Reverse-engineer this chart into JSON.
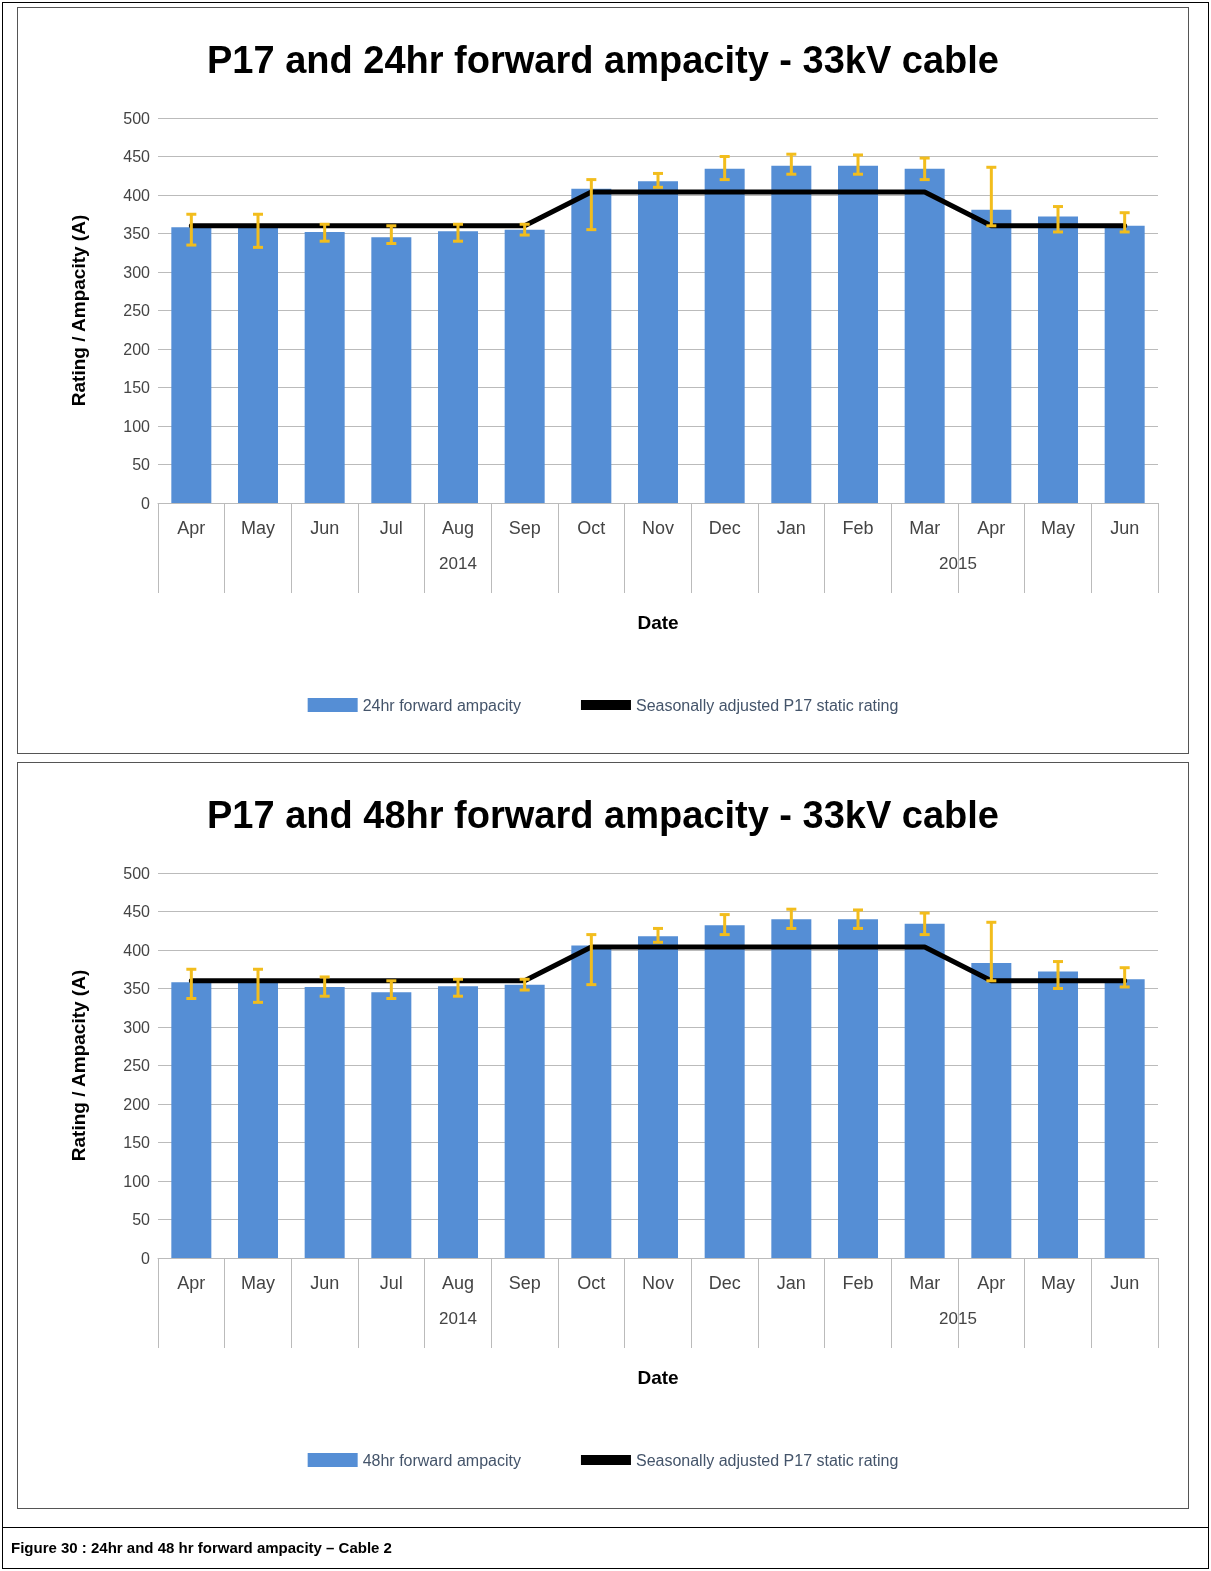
{
  "chart_data": [
    {
      "type": "bar",
      "title": "P17 and 24hr forward ampacity - 33kV cable",
      "xlabel": "Date",
      "ylabel": "Rating / Ampacity (A)",
      "categories": [
        "Apr",
        "May",
        "Jun",
        "Jul",
        "Aug",
        "Sep",
        "Oct",
        "Nov",
        "Dec",
        "Jan",
        "Feb",
        "Mar",
        "Apr",
        "May",
        "Jun"
      ],
      "series": [
        {
          "name": "24hr forward ampacity",
          "color": "#558ed5",
          "values": [
            358,
            357,
            352,
            345,
            353,
            355,
            408,
            418,
            434,
            438,
            438,
            434,
            381,
            372,
            360
          ],
          "errors": [
            [
              335,
              375
            ],
            [
              332,
              375
            ],
            [
              340,
              362
            ],
            [
              337,
              360
            ],
            [
              340,
              362
            ],
            [
              348,
              362
            ],
            [
              355,
              420
            ],
            [
              410,
              428
            ],
            [
              420,
              450
            ],
            [
              427,
              453
            ],
            [
              427,
              452
            ],
            [
              420,
              448
            ],
            [
              360,
              436
            ],
            [
              352,
              385
            ],
            [
              352,
              377
            ]
          ]
        },
        {
          "name": "Seasonally adjusted P17 static rating",
          "type": "line",
          "color": "#000000",
          "values": [
            360,
            360,
            360,
            360,
            360,
            360,
            404,
            404,
            404,
            404,
            404,
            404,
            360,
            360,
            360
          ]
        }
      ],
      "ylim": [
        0,
        500
      ],
      "yticks": [
        0,
        50,
        100,
        150,
        200,
        250,
        300,
        350,
        400,
        450,
        500
      ],
      "grid": "y",
      "legend": "bottom",
      "marker": "none",
      "line_style": "solid",
      "annotations": [
        "2014",
        "2015"
      ]
    },
    {
      "type": "bar",
      "title": "P17 and 48hr forward ampacity - 33kV cable",
      "xlabel": "Date",
      "ylabel": "Rating / Ampacity (A)",
      "categories": [
        "Apr",
        "May",
        "Jun",
        "Jul",
        "Aug",
        "Sep",
        "Oct",
        "Nov",
        "Dec",
        "Jan",
        "Feb",
        "Mar",
        "Apr",
        "May",
        "Jun"
      ],
      "series": [
        {
          "name": "48hr forward ampacity",
          "color": "#558ed5",
          "values": [
            358,
            357,
            352,
            345,
            353,
            355,
            406,
            418,
            432,
            440,
            440,
            434,
            383,
            372,
            362
          ],
          "errors": [
            [
              337,
              375
            ],
            [
              332,
              375
            ],
            [
              340,
              365
            ],
            [
              337,
              360
            ],
            [
              340,
              362
            ],
            [
              348,
              362
            ],
            [
              355,
              420
            ],
            [
              410,
              428
            ],
            [
              420,
              446
            ],
            [
              428,
              453
            ],
            [
              428,
              452
            ],
            [
              420,
              448
            ],
            [
              360,
              436
            ],
            [
              350,
              385
            ],
            [
              352,
              377
            ]
          ]
        },
        {
          "name": "Seasonally adjusted P17 static rating",
          "type": "line",
          "color": "#000000",
          "values": [
            360,
            360,
            360,
            360,
            360,
            360,
            404,
            404,
            404,
            404,
            404,
            404,
            360,
            360,
            360
          ]
        }
      ],
      "ylim": [
        0,
        500
      ],
      "yticks": [
        0,
        50,
        100,
        150,
        200,
        250,
        300,
        350,
        400,
        450,
        500
      ],
      "grid": "y",
      "legend": "bottom",
      "marker": "none",
      "line_style": "solid",
      "annotations": [
        "2014",
        "2015",
        "Figure 30 : 24hr and 48 hr forward ampacity – Cable 2"
      ]
    }
  ]
}
